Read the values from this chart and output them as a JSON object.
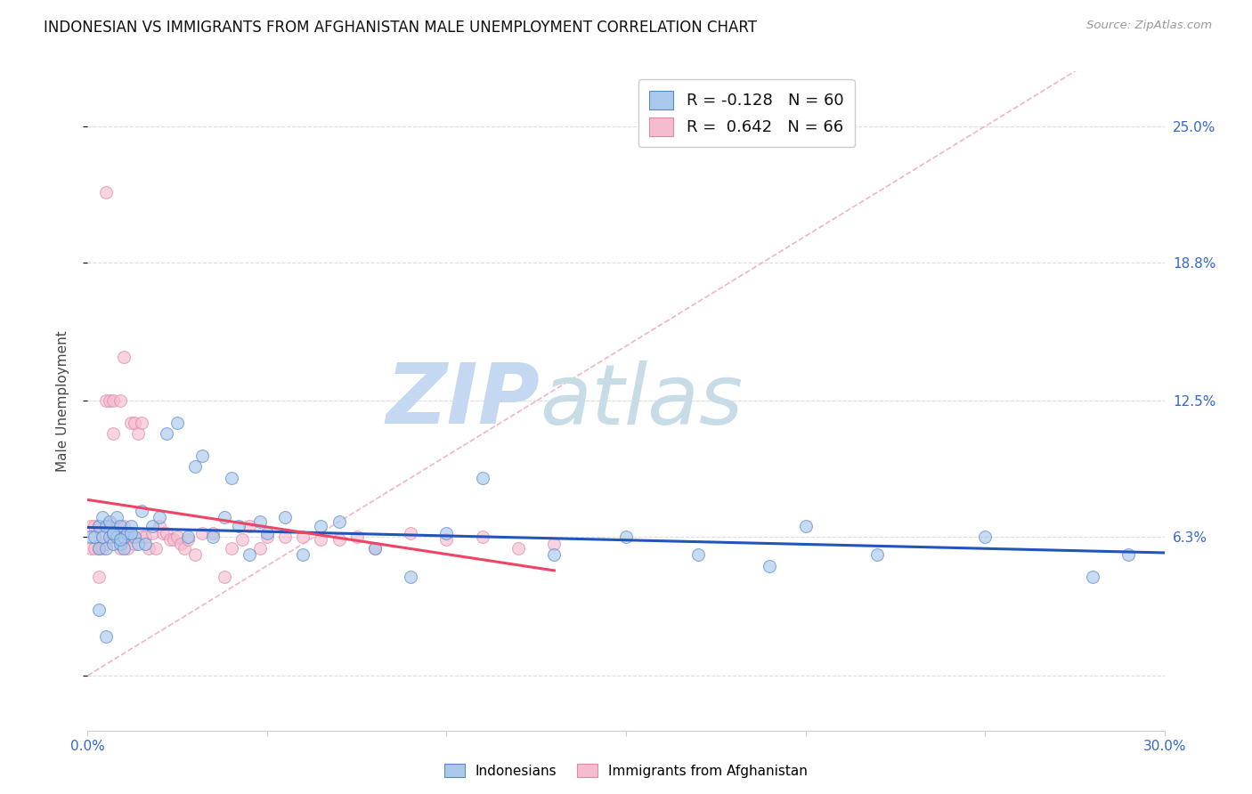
{
  "title": "INDONESIAN VS IMMIGRANTS FROM AFGHANISTAN MALE UNEMPLOYMENT CORRELATION CHART",
  "source": "Source: ZipAtlas.com",
  "ylabel": "Male Unemployment",
  "xmin": 0.0,
  "xmax": 0.3,
  "ymin": -0.025,
  "ymax": 0.275,
  "background_color": "#ffffff",
  "grid_color": "#dddddd",
  "watermark_zip": "ZIP",
  "watermark_atlas": "atlas",
  "watermark_color_zip": "#c8d8f0",
  "watermark_color_atlas": "#c8d8e8",
  "indonesian_color": "#aac8ec",
  "indonesian_edge_color": "#5588cc",
  "afghan_color": "#f5bcd0",
  "afghan_edge_color": "#dd88aa",
  "trend_indonesian_color": "#2255bb",
  "trend_afghan_color": "#ee4466",
  "diagonal_color": "#f0a0b8",
  "legend_R_indonesian": "-0.128",
  "legend_N_indonesian": "60",
  "legend_R_afghan": "0.642",
  "legend_N_afghan": "66",
  "R_color": "#2244cc",
  "marker_size": 100,
  "marker_alpha": 0.65,
  "indonesian_x": [
    0.001,
    0.002,
    0.003,
    0.003,
    0.004,
    0.004,
    0.005,
    0.005,
    0.006,
    0.006,
    0.007,
    0.007,
    0.008,
    0.008,
    0.009,
    0.009,
    0.01,
    0.01,
    0.011,
    0.012,
    0.013,
    0.014,
    0.015,
    0.016,
    0.018,
    0.02,
    0.022,
    0.025,
    0.028,
    0.03,
    0.032,
    0.035,
    0.038,
    0.04,
    0.042,
    0.045,
    0.048,
    0.05,
    0.055,
    0.06,
    0.065,
    0.07,
    0.08,
    0.09,
    0.1,
    0.11,
    0.13,
    0.15,
    0.17,
    0.19,
    0.2,
    0.22,
    0.25,
    0.28,
    0.29,
    0.003,
    0.005,
    0.007,
    0.009,
    0.012
  ],
  "indonesian_y": [
    0.063,
    0.063,
    0.058,
    0.068,
    0.063,
    0.072,
    0.058,
    0.068,
    0.063,
    0.07,
    0.06,
    0.065,
    0.063,
    0.072,
    0.06,
    0.068,
    0.063,
    0.058,
    0.065,
    0.068,
    0.063,
    0.06,
    0.075,
    0.06,
    0.068,
    0.072,
    0.11,
    0.115,
    0.063,
    0.095,
    0.1,
    0.063,
    0.072,
    0.09,
    0.068,
    0.055,
    0.07,
    0.065,
    0.072,
    0.055,
    0.068,
    0.07,
    0.058,
    0.045,
    0.065,
    0.09,
    0.055,
    0.063,
    0.055,
    0.05,
    0.068,
    0.055,
    0.063,
    0.045,
    0.055,
    0.03,
    0.018,
    0.065,
    0.062,
    0.065
  ],
  "afghan_x": [
    0.001,
    0.001,
    0.002,
    0.002,
    0.003,
    0.003,
    0.003,
    0.004,
    0.004,
    0.005,
    0.005,
    0.006,
    0.006,
    0.007,
    0.007,
    0.007,
    0.008,
    0.008,
    0.009,
    0.009,
    0.01,
    0.01,
    0.011,
    0.011,
    0.012,
    0.012,
    0.013,
    0.013,
    0.014,
    0.015,
    0.015,
    0.016,
    0.017,
    0.018,
    0.019,
    0.02,
    0.021,
    0.022,
    0.023,
    0.024,
    0.025,
    0.026,
    0.027,
    0.028,
    0.03,
    0.032,
    0.035,
    0.038,
    0.04,
    0.043,
    0.045,
    0.048,
    0.05,
    0.055,
    0.06,
    0.065,
    0.07,
    0.075,
    0.08,
    0.09,
    0.1,
    0.11,
    0.12,
    0.13,
    0.005,
    0.01
  ],
  "afghan_y": [
    0.068,
    0.058,
    0.058,
    0.068,
    0.045,
    0.058,
    0.068,
    0.058,
    0.063,
    0.125,
    0.06,
    0.125,
    0.068,
    0.125,
    0.11,
    0.063,
    0.065,
    0.068,
    0.058,
    0.125,
    0.063,
    0.068,
    0.058,
    0.065,
    0.115,
    0.063,
    0.115,
    0.06,
    0.11,
    0.063,
    0.115,
    0.063,
    0.058,
    0.065,
    0.058,
    0.068,
    0.065,
    0.065,
    0.062,
    0.062,
    0.063,
    0.06,
    0.058,
    0.062,
    0.055,
    0.065,
    0.065,
    0.045,
    0.058,
    0.062,
    0.068,
    0.058,
    0.063,
    0.063,
    0.063,
    0.062,
    0.062,
    0.063,
    0.058,
    0.065,
    0.062,
    0.063,
    0.058,
    0.06,
    0.22,
    0.145
  ]
}
